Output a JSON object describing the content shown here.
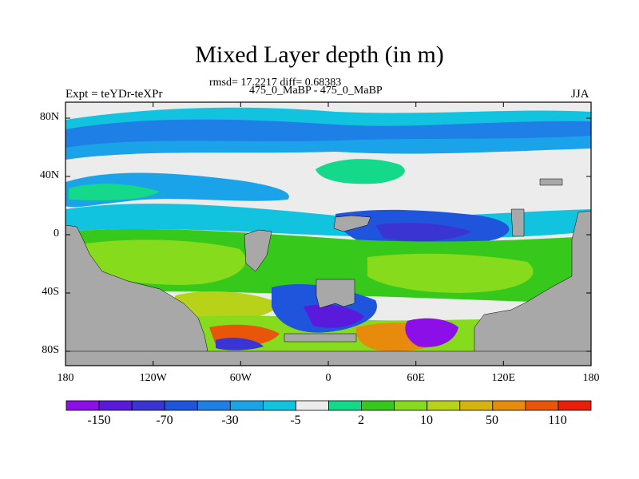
{
  "title": "Mixed Layer depth (in m)",
  "stats_line": "rmsd= 17.2217 diff= 0.68383",
  "run_line": "475_0_MaBP - 475_0_MaBP",
  "experiment_label": "Expt = teYDr-teXPr",
  "season_label": "JJA",
  "axes": {
    "y_ticks": [
      "80N",
      "40N",
      "0",
      "40S",
      "80S"
    ],
    "x_ticks": [
      "180",
      "120W",
      "60W",
      "0",
      "60E",
      "120E",
      "180"
    ],
    "lon_range": [
      -180,
      180
    ],
    "lat_range": [
      -90,
      90
    ]
  },
  "colorbar": {
    "labels": [
      "-150",
      "-70",
      "-30",
      "-5",
      "2",
      "10",
      "50",
      "110"
    ],
    "colors": [
      "#8c0fe8",
      "#5a1adc",
      "#3a35d2",
      "#1f55dc",
      "#1e7fe6",
      "#1aa3e8",
      "#12c3e0",
      "#ececec",
      "#14d98a",
      "#36c81a",
      "#86db1c",
      "#b8d21a",
      "#d6b410",
      "#e88a0c",
      "#e8560a",
      "#e8200a"
    ]
  },
  "palette": {
    "land": "#a8a8a8",
    "neutral": "#ececec"
  }
}
